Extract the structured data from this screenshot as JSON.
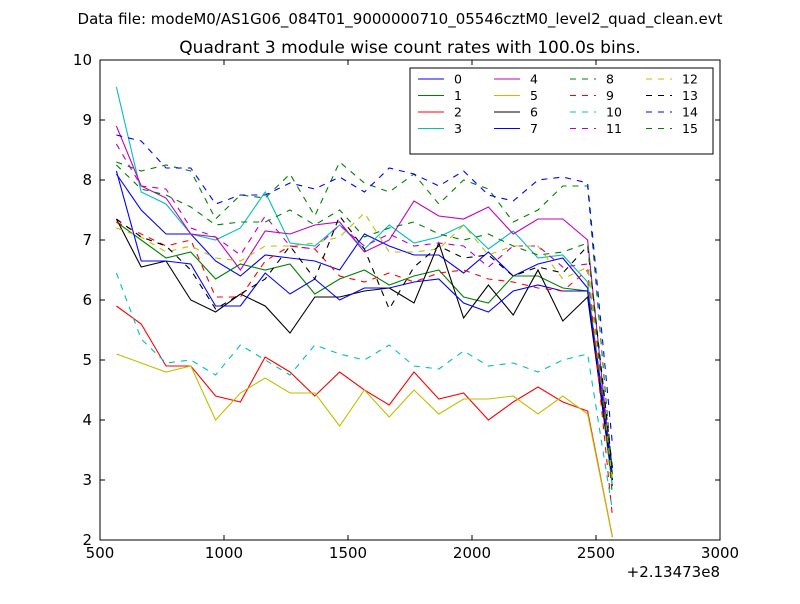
{
  "header": {
    "file_label": "Data file: modeM0/AS1G06_084T01_9000000710_05546cztM0_level2_quad_clean.evt"
  },
  "chart_data": {
    "type": "line",
    "title": "Quadrant 3 module wise count rates with 100.0s bins.",
    "xlabel": "",
    "ylabel": "",
    "x_offset_label": "+2.13473e8",
    "xlim": [
      500,
      3000
    ],
    "ylim": [
      2,
      10
    ],
    "x_ticks": [
      500,
      1000,
      1500,
      2000,
      2500,
      3000
    ],
    "y_ticks": [
      2,
      3,
      4,
      5,
      6,
      7,
      8,
      9,
      10
    ],
    "grid": false,
    "legend_position": "top-right",
    "x": [
      566,
      666,
      766,
      866,
      966,
      1066,
      1166,
      1266,
      1366,
      1466,
      1566,
      1666,
      1766,
      1866,
      1966,
      2066,
      2166,
      2266,
      2366,
      2466,
      2566
    ],
    "series": [
      {
        "name": "0",
        "color": "#0000ff",
        "dash": "solid",
        "values": [
          8.1,
          7.5,
          7.1,
          7.1,
          6.65,
          6.4,
          6.75,
          6.7,
          6.65,
          6.5,
          7.1,
          6.9,
          6.75,
          6.75,
          6.45,
          6.8,
          6.4,
          6.6,
          6.7,
          6.2,
          3.2
        ]
      },
      {
        "name": "1",
        "color": "#008000",
        "dash": "solid",
        "values": [
          7.3,
          7.0,
          6.7,
          6.8,
          6.35,
          6.6,
          6.5,
          6.6,
          6.1,
          6.35,
          6.5,
          6.25,
          6.4,
          6.5,
          6.05,
          5.95,
          6.4,
          6.4,
          6.2,
          6.15,
          2.9
        ]
      },
      {
        "name": "2",
        "color": "#ff0000",
        "dash": "solid",
        "values": [
          5.9,
          5.6,
          4.9,
          4.9,
          4.4,
          4.3,
          5.05,
          4.8,
          4.4,
          4.8,
          4.5,
          4.25,
          4.8,
          4.35,
          4.45,
          4.0,
          4.3,
          4.55,
          4.3,
          4.15,
          2.05
        ]
      },
      {
        "name": "3",
        "color": "#00bfbf",
        "dash": "solid",
        "values": [
          9.55,
          7.8,
          7.6,
          7.1,
          7.0,
          7.2,
          7.8,
          6.95,
          6.9,
          7.25,
          6.85,
          7.25,
          6.95,
          7.05,
          7.25,
          6.85,
          7.15,
          6.7,
          6.75,
          6.3,
          2.9
        ]
      },
      {
        "name": "4",
        "color": "#bf00bf",
        "dash": "solid",
        "values": [
          8.9,
          7.9,
          7.7,
          7.1,
          7.05,
          6.5,
          7.15,
          7.1,
          7.25,
          7.3,
          6.8,
          7.0,
          7.65,
          7.4,
          7.35,
          7.55,
          7.1,
          7.35,
          7.35,
          7.0,
          3.0
        ]
      },
      {
        "name": "5",
        "color": "#bfbf00",
        "dash": "solid",
        "values": [
          5.1,
          4.95,
          4.8,
          4.9,
          4.0,
          4.45,
          4.7,
          4.45,
          4.45,
          3.9,
          4.5,
          4.05,
          4.5,
          4.1,
          4.35,
          4.35,
          4.4,
          4.1,
          4.4,
          4.1,
          2.05
        ]
      },
      {
        "name": "6",
        "color": "#000000",
        "dash": "solid",
        "values": [
          7.35,
          6.55,
          6.65,
          6.0,
          5.8,
          6.1,
          5.9,
          5.45,
          6.05,
          6.05,
          6.15,
          6.2,
          5.95,
          6.95,
          5.7,
          6.25,
          5.75,
          6.5,
          5.65,
          6.05,
          3.0
        ]
      },
      {
        "name": "7",
        "color": "#0000ff",
        "dash": "solid",
        "values": [
          8.15,
          6.65,
          6.65,
          6.6,
          5.9,
          5.9,
          6.45,
          6.1,
          6.35,
          6.0,
          6.2,
          6.2,
          6.3,
          6.35,
          5.95,
          5.8,
          6.15,
          6.25,
          6.15,
          6.15,
          3.1
        ]
      },
      {
        "name": "8",
        "color": "#008000",
        "dash": "dashed",
        "values": [
          8.3,
          8.15,
          8.25,
          8.15,
          7.35,
          7.75,
          7.7,
          8.1,
          7.4,
          8.3,
          7.95,
          7.8,
          8.1,
          7.6,
          8.0,
          7.85,
          7.3,
          7.5,
          7.9,
          7.9,
          3.1
        ]
      },
      {
        "name": "9",
        "color": "#ff0000",
        "dash": "dashed",
        "values": [
          7.3,
          7.1,
          6.9,
          7.0,
          6.05,
          6.05,
          6.65,
          6.9,
          6.85,
          6.4,
          6.3,
          6.45,
          6.3,
          6.45,
          6.5,
          6.35,
          6.3,
          6.2,
          6.15,
          6.5,
          2.4
        ]
      },
      {
        "name": "10",
        "color": "#00bfbf",
        "dash": "dashed",
        "values": [
          6.45,
          5.35,
          4.95,
          5.0,
          4.75,
          5.25,
          5.0,
          4.75,
          5.25,
          5.1,
          5.0,
          5.25,
          4.9,
          4.85,
          5.15,
          4.9,
          4.95,
          4.8,
          5.0,
          5.1,
          2.5
        ]
      },
      {
        "name": "11",
        "color": "#bf00bf",
        "dash": "dashed",
        "values": [
          8.6,
          7.9,
          7.85,
          7.2,
          7.05,
          6.75,
          7.4,
          6.9,
          6.85,
          7.25,
          6.9,
          7.1,
          6.9,
          6.95,
          6.9,
          6.55,
          6.9,
          6.9,
          6.55,
          6.6,
          2.9
        ]
      },
      {
        "name": "12",
        "color": "#bfbf00",
        "dash": "dashed",
        "values": [
          7.2,
          7.05,
          6.8,
          6.9,
          6.7,
          6.65,
          6.9,
          6.9,
          6.95,
          7.05,
          7.45,
          6.8,
          6.8,
          6.85,
          7.25,
          6.75,
          6.9,
          6.9,
          6.35,
          6.55,
          3.0
        ]
      },
      {
        "name": "13",
        "color": "#000000",
        "dash": "dashed",
        "values": [
          7.35,
          7.05,
          6.9,
          6.5,
          5.85,
          6.1,
          6.35,
          6.9,
          6.35,
          7.4,
          6.85,
          5.85,
          6.55,
          6.9,
          6.7,
          6.75,
          6.4,
          6.55,
          6.45,
          6.9,
          3.2
        ]
      },
      {
        "name": "14",
        "color": "#0000ff",
        "dash": "dashed",
        "values": [
          8.75,
          8.65,
          8.2,
          8.2,
          7.6,
          7.75,
          7.75,
          7.95,
          7.85,
          8.05,
          7.8,
          8.2,
          8.1,
          7.9,
          8.15,
          7.75,
          7.65,
          8.0,
          8.05,
          7.95,
          3.6
        ]
      },
      {
        "name": "15",
        "color": "#008000",
        "dash": "dashed",
        "values": [
          8.25,
          7.85,
          7.75,
          7.55,
          7.25,
          7.3,
          7.3,
          7.5,
          7.25,
          7.5,
          7.05,
          7.2,
          7.3,
          7.1,
          7.0,
          7.1,
          6.9,
          6.75,
          6.8,
          6.95,
          2.75
        ]
      }
    ]
  }
}
